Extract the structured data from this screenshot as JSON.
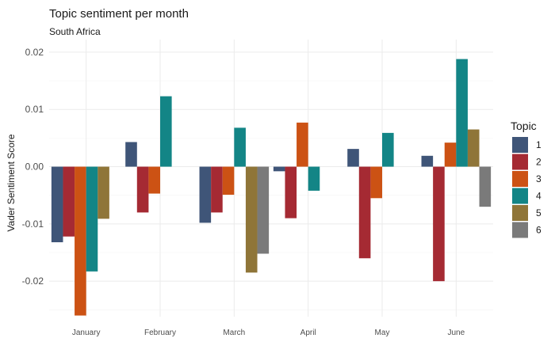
{
  "chart_data": {
    "type": "bar",
    "title": "Topic sentiment per month",
    "subtitle": "South Africa",
    "xlabel": "",
    "ylabel": "Vader Sentiment Score",
    "categories": [
      "January",
      "February",
      "March",
      "April",
      "May",
      "June"
    ],
    "ylim": [
      -0.0262,
      0.0222
    ],
    "yticks": [
      0.02,
      0.01,
      0.0,
      -0.01,
      -0.02
    ],
    "ytick_labels": [
      "0.02",
      "0.01",
      "0.00",
      "-0.01",
      "-0.02"
    ],
    "grid": true,
    "legend": {
      "title": "Topic",
      "position": "right"
    },
    "series": [
      {
        "name": "1",
        "color": "#3f5578",
        "values": [
          -0.0132,
          0.0043,
          -0.0098,
          -0.0008,
          0.0031,
          0.0019
        ]
      },
      {
        "name": "2",
        "color": "#a52a33",
        "values": [
          -0.0122,
          -0.008,
          -0.008,
          -0.009,
          -0.016,
          -0.02
        ]
      },
      {
        "name": "3",
        "color": "#cc5214",
        "values": [
          -0.026,
          -0.0047,
          -0.0049,
          0.0077,
          -0.0055,
          0.0042
        ]
      },
      {
        "name": "4",
        "color": "#138586",
        "values": [
          -0.0183,
          0.0123,
          0.0068,
          -0.0042,
          0.0059,
          0.0188
        ]
      },
      {
        "name": "5",
        "color": "#8f7538",
        "values": [
          -0.0091,
          null,
          -0.0185,
          null,
          null,
          0.0065
        ]
      },
      {
        "name": "6",
        "color": "#7a7a7a",
        "values": [
          null,
          null,
          -0.0152,
          null,
          null,
          -0.007
        ]
      }
    ]
  }
}
